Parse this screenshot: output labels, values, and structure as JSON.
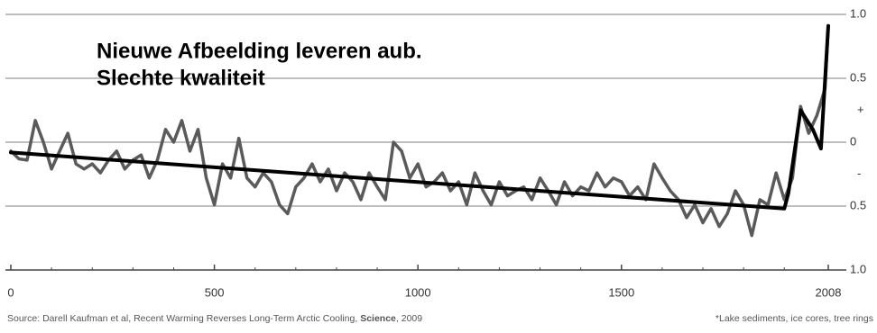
{
  "chart_data": {
    "type": "line",
    "overlay_lines": [
      "Nieuwe Afbeelding leveren aub.",
      "Slechte kwaliteit"
    ],
    "source": {
      "prefix": "Source: Darell Kaufman et al, Recent Warming Reverses Long-Term Arctic Cooling, ",
      "bold": "Science",
      "suffix": ", 2009"
    },
    "footnote": "*Lake sediments, ice cores, tree rings",
    "xlim": [
      0,
      2008
    ],
    "xticks": [
      0,
      500,
      1000,
      1500,
      2008
    ],
    "xminorticks": [
      100,
      200,
      300,
      400,
      600,
      700,
      800,
      900,
      1100,
      1200,
      1300,
      1400,
      1600,
      1700,
      1800,
      1900
    ],
    "ylim": [
      -1,
      1
    ],
    "yticks": [
      {
        "value": 1,
        "label": "1.0"
      },
      {
        "value": 0.5,
        "label": "0.5"
      },
      0,
      {
        "value": -0.5,
        "label": "0.5"
      },
      {
        "value": -1,
        "label": "1.0"
      }
    ],
    "annotations": [
      {
        "text": "+",
        "y": 0.25
      },
      {
        "text": "-",
        "y": -0.25
      }
    ],
    "grid": true,
    "series": [
      {
        "color": "#5a5a5a",
        "width": 3.5,
        "x": [
          0,
          20,
          40,
          60,
          80,
          100,
          120,
          140,
          160,
          180,
          200,
          220,
          240,
          260,
          280,
          300,
          320,
          340,
          360,
          380,
          400,
          420,
          440,
          460,
          480,
          500,
          520,
          540,
          560,
          580,
          600,
          620,
          640,
          660,
          680,
          700,
          720,
          740,
          760,
          780,
          800,
          820,
          840,
          860,
          880,
          900,
          920,
          940,
          960,
          980,
          1000,
          1020,
          1040,
          1060,
          1080,
          1100,
          1120,
          1140,
          1160,
          1180,
          1200,
          1220,
          1240,
          1260,
          1280,
          1300,
          1320,
          1340,
          1360,
          1380,
          1400,
          1420,
          1440,
          1460,
          1480,
          1500,
          1520,
          1540,
          1560,
          1580,
          1600,
          1620,
          1640,
          1660,
          1680,
          1700,
          1720,
          1740,
          1760,
          1780,
          1800,
          1820,
          1840,
          1860,
          1880,
          1900,
          1920,
          1940,
          1960,
          1980,
          2000,
          2008
        ],
        "values": [
          -0.07,
          -0.13,
          -0.14,
          0.17,
          0,
          -0.21,
          -0.07,
          0.07,
          -0.17,
          -0.21,
          -0.17,
          -0.24,
          -0.14,
          -0.07,
          -0.21,
          -0.14,
          -0.1,
          -0.28,
          -0.14,
          0.1,
          0,
          0.17,
          -0.07,
          0.1,
          -0.28,
          -0.49,
          -0.17,
          -0.28,
          0.03,
          -0.28,
          -0.35,
          -0.24,
          -0.31,
          -0.49,
          -0.56,
          -0.35,
          -0.28,
          -0.17,
          -0.31,
          -0.21,
          -0.38,
          -0.24,
          -0.31,
          -0.45,
          -0.24,
          -0.35,
          -0.45,
          0,
          -0.07,
          -0.28,
          -0.17,
          -0.35,
          -0.31,
          -0.24,
          -0.38,
          -0.31,
          -0.49,
          -0.24,
          -0.38,
          -0.49,
          -0.31,
          -0.42,
          -0.38,
          -0.35,
          -0.45,
          -0.28,
          -0.38,
          -0.49,
          -0.31,
          -0.42,
          -0.35,
          -0.38,
          -0.24,
          -0.35,
          -0.28,
          -0.31,
          -0.42,
          -0.35,
          -0.45,
          -0.17,
          -0.28,
          -0.38,
          -0.45,
          -0.59,
          -0.49,
          -0.63,
          -0.52,
          -0.66,
          -0.56,
          -0.38,
          -0.49,
          -0.73,
          -0.45,
          -0.49,
          -0.24,
          -0.45,
          -0.28,
          0.28,
          0.07,
          0.21,
          0.42,
          0.91
        ]
      },
      {
        "color": "#000000",
        "width": 4,
        "x": [
          0,
          1900,
          1910,
          1940,
          1970,
          1990,
          2008
        ],
        "values": [
          -0.08,
          -0.52,
          -0.4,
          0.25,
          0.1,
          -0.05,
          0.91
        ]
      }
    ]
  }
}
